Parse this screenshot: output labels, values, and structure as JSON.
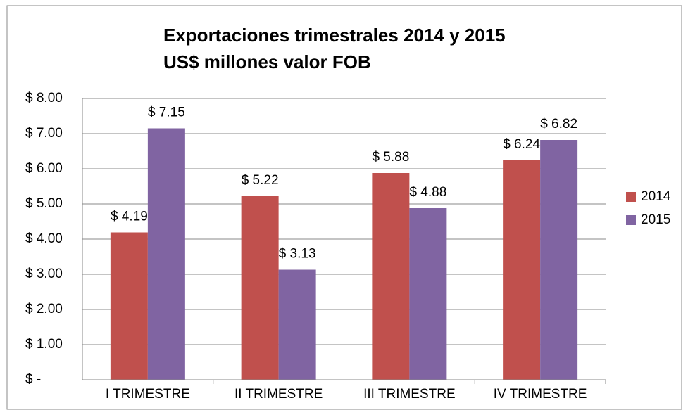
{
  "chart_data": {
    "type": "bar",
    "title": "Exportaciones trimestrales 2014 y 2015",
    "subtitle": "US$ millones valor FOB",
    "categories": [
      "I TRIMESTRE",
      "II TRIMESTRE",
      "III TRIMESTRE",
      "IV TRIMESTRE"
    ],
    "series": [
      {
        "name": "2014",
        "color": "#c0504d",
        "values": [
          4.19,
          5.22,
          5.88,
          6.24
        ],
        "value_labels": [
          "$ 4.19",
          "$ 5.22",
          "$ 5.88",
          "$ 6.24"
        ]
      },
      {
        "name": "2015",
        "color": "#8064a2",
        "values": [
          7.15,
          3.13,
          4.88,
          6.82
        ],
        "value_labels": [
          "$ 7.15",
          "$ 3.13",
          "$ 4.88",
          "$ 6.82"
        ]
      }
    ],
    "ylim": [
      0,
      8
    ],
    "yticks": [
      {
        "value": 0,
        "label": "$ -"
      },
      {
        "value": 1,
        "label": "$ 1.00"
      },
      {
        "value": 2,
        "label": "$ 2.00"
      },
      {
        "value": 3,
        "label": "$ 3.00"
      },
      {
        "value": 4,
        "label": "$ 4.00"
      },
      {
        "value": 5,
        "label": "$ 5.00"
      },
      {
        "value": 6,
        "label": "$ 6.00"
      },
      {
        "value": 7,
        "label": "$ 7.00"
      },
      {
        "value": 8,
        "label": "$ 8.00"
      }
    ],
    "grid": true,
    "legend": "right"
  }
}
